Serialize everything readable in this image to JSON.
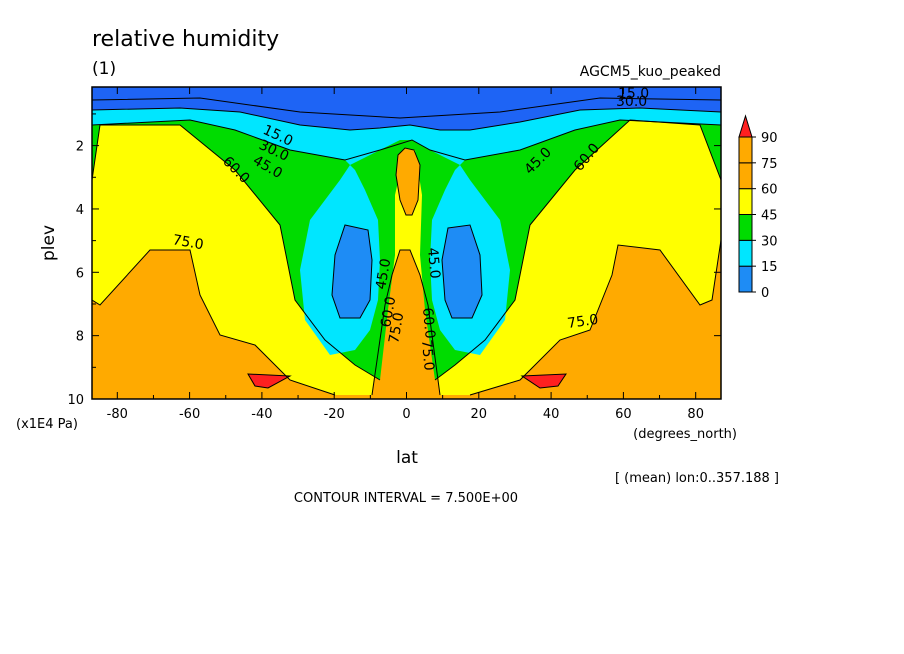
{
  "chart_data": {
    "type": "heatmap",
    "title": "relative humidity",
    "panel_label": "(1)",
    "run_label": "AGCM5_kuo_peaked",
    "xlabel": "lat",
    "xunit": "(degrees_north)",
    "ylabel": "plev",
    "yunit": "(x1E4 Pa)",
    "xlim": [
      -87,
      87
    ],
    "ylim": [
      0.15,
      10
    ],
    "y_inverted": true,
    "x_ticks": [
      -80,
      -60,
      -40,
      -20,
      0,
      20,
      40,
      60,
      80
    ],
    "x_tick_labels": [
      "-80",
      "-60",
      "-40",
      "-20",
      "0",
      "20",
      "40",
      "60",
      "80"
    ],
    "y_ticks": [
      2,
      4,
      6,
      8,
      10
    ],
    "y_tick_labels": [
      "2",
      "4",
      "6",
      "8",
      "10"
    ],
    "colorbar": {
      "levels": [
        0,
        15,
        30,
        45,
        60,
        75,
        90
      ],
      "labels": [
        "0",
        "15",
        "30",
        "45",
        "60",
        "75",
        "90"
      ],
      "colors": [
        "#1e64f5",
        "#00c3ff",
        "#00dc00",
        "#ffff00",
        "#ffaa00",
        "#ff2020"
      ],
      "band_colors": [
        "#1e64f5",
        "#00e6ff",
        "#00dc00",
        "#ffff00",
        "#ffaa00"
      ]
    },
    "contour_labels": [
      "15.0",
      "30.0",
      "45.0",
      "60.0",
      "75.0",
      "45.0",
      "60.0",
      "75.0",
      "45.0",
      "60.0",
      "75.0",
      "45.0",
      "60.0",
      "75.0",
      "15.0",
      "30.0",
      "60.0"
    ],
    "footer_note": "[ (mean) lon:0..357.188 ]",
    "contour_interval": "CONTOUR INTERVAL = 7.500E+00"
  }
}
